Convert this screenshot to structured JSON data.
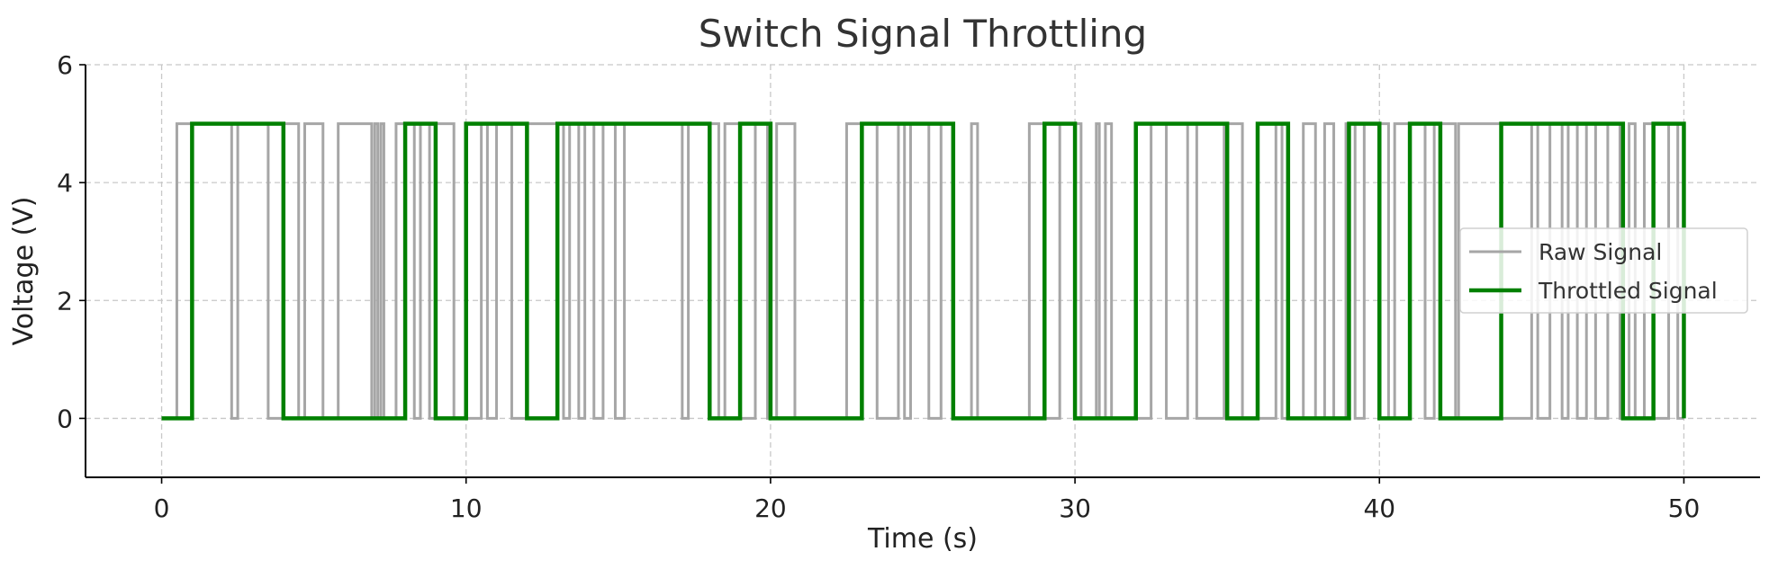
{
  "chart_data": {
    "type": "line",
    "title": "Switch Signal Throttling",
    "xlabel": "Time (s)",
    "ylabel": "Voltage (V)",
    "xlim": [
      -2.5,
      52.5
    ],
    "ylim": [
      -1,
      6
    ],
    "x_ticks": [
      0,
      10,
      20,
      30,
      40,
      50
    ],
    "y_ticks": [
      0,
      2,
      4,
      6
    ],
    "grid": true,
    "legend_position": "center-right",
    "series": [
      {
        "name": "Raw Signal",
        "color": "#a6a6a6",
        "step": "post",
        "x": [
          0,
          0.5,
          2.3,
          2.5,
          3.5,
          4.0,
          4.5,
          4.7,
          5.3,
          5.8,
          6.9,
          7.0,
          7.1,
          7.2,
          7.3,
          7.7,
          8.3,
          8.5,
          8.8,
          9.0,
          9.6,
          10.5,
          10.7,
          11.0,
          11.5,
          12.0,
          13.2,
          13.4,
          13.7,
          13.9,
          14.2,
          14.5,
          14.9,
          15.2,
          17.1,
          17.3,
          18.3,
          18.5,
          19.0,
          19.5,
          19.9,
          20.2,
          20.8,
          22.5,
          23.5,
          24.2,
          24.4,
          24.6,
          25.2,
          25.6,
          26.0,
          26.6,
          26.8,
          28.5,
          29.0,
          29.5,
          30.2,
          30.7,
          30.8,
          31.0,
          31.2,
          32.5,
          33.0,
          33.7,
          34.0,
          34.9,
          35.5,
          36.6,
          36.8,
          37.5,
          37.9,
          38.2,
          38.5,
          38.9,
          39.2,
          39.5,
          40.3,
          40.5,
          41.5,
          41.8,
          42.5,
          42.6,
          44.0,
          45.0,
          45.2,
          45.6,
          46.0,
          46.2,
          46.5,
          46.8,
          47.1,
          47.5,
          47.9,
          48.2,
          48.4,
          48.7,
          49.0,
          49.5,
          49.8,
          50.0
        ],
        "y": [
          0,
          5,
          0,
          5,
          0,
          5,
          0,
          5,
          0,
          5,
          0,
          5,
          0,
          5,
          0,
          5,
          0,
          5,
          0,
          5,
          0,
          5,
          0,
          5,
          0,
          5,
          0,
          5,
          0,
          5,
          0,
          5,
          0,
          5,
          0,
          5,
          0,
          5,
          0,
          5,
          0,
          5,
          0,
          5,
          0,
          5,
          0,
          5,
          0,
          5,
          0,
          5,
          0,
          5,
          0,
          5,
          0,
          5,
          0,
          5,
          0,
          5,
          0,
          5,
          0,
          5,
          0,
          5,
          0,
          5,
          0,
          5,
          0,
          5,
          0,
          5,
          0,
          5,
          0,
          5,
          0,
          5,
          0,
          5,
          0,
          5,
          0,
          5,
          0,
          5,
          0,
          5,
          0,
          5,
          0,
          5,
          0,
          5,
          0,
          0
        ]
      },
      {
        "name": "Throttled Signal",
        "color": "#008000",
        "step": "post",
        "x": [
          0,
          1,
          4,
          8,
          9,
          10,
          12,
          13,
          18,
          19,
          20,
          23,
          26,
          29,
          30,
          32,
          35,
          36,
          37,
          39,
          40,
          41,
          42,
          44,
          48,
          49,
          50
        ],
        "y": [
          0,
          5,
          0,
          5,
          0,
          5,
          0,
          5,
          0,
          5,
          0,
          5,
          0,
          5,
          0,
          5,
          0,
          5,
          0,
          5,
          0,
          5,
          0,
          5,
          0,
          5,
          0
        ]
      }
    ]
  }
}
